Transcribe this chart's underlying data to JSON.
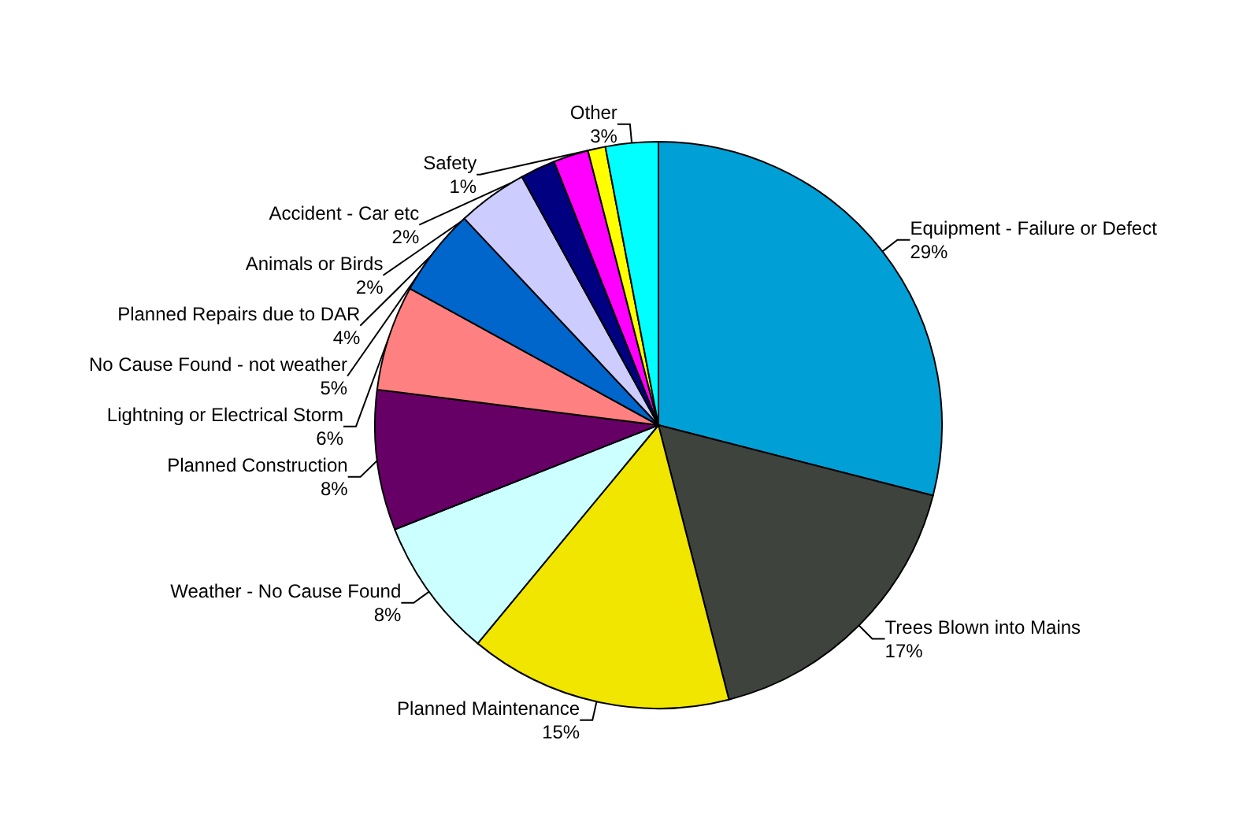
{
  "chart_data": {
    "type": "pie",
    "categories": [
      "Equipment - Failure or Defect",
      "Trees Blown into Mains",
      "Planned Maintenance",
      "Weather - No Cause Found",
      "Planned Construction",
      "Lightning or Electrical Storm",
      "No Cause Found - not weather",
      "Planned Repairs due to DAR",
      "Animals or Birds",
      "Accident - Car etc",
      "Safety",
      "Other"
    ],
    "values": [
      29,
      17,
      15,
      8,
      8,
      6,
      5,
      4,
      2,
      2,
      1,
      3
    ],
    "value_labels": [
      "29%",
      "17%",
      "15%",
      "8%",
      "8%",
      "6%",
      "5%",
      "4%",
      "2%",
      "2%",
      "1%",
      "3%"
    ],
    "colors": [
      "#00a0d6",
      "#3f433e",
      "#f0e600",
      "#ccffff",
      "#660066",
      "#ff8080",
      "#0066cc",
      "#ccccff",
      "#000080",
      "#ff00ff",
      "#ffff00",
      "#00ffff"
    ],
    "legend": false
  }
}
